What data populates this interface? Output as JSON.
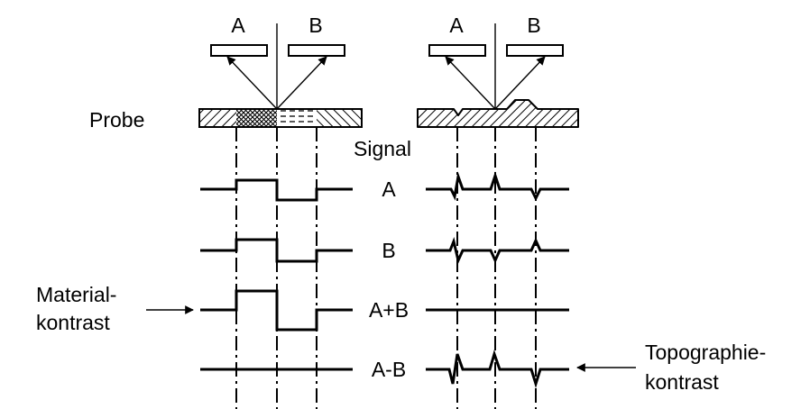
{
  "labels": {
    "detector_a_left": "A",
    "detector_b_left": "B",
    "detector_a_right": "A",
    "detector_b_right": "B",
    "probe": "Probe",
    "signal": "Signal",
    "row_a": "A",
    "row_b": "B",
    "row_sum": "A+B",
    "row_diff": "A-B",
    "material_line1": "Material-",
    "material_line2": "kontrast",
    "topo_line1": "Topographie-",
    "topo_line2": "kontrast"
  },
  "colors": {
    "ink": "#000000",
    "background": "#ffffff"
  }
}
